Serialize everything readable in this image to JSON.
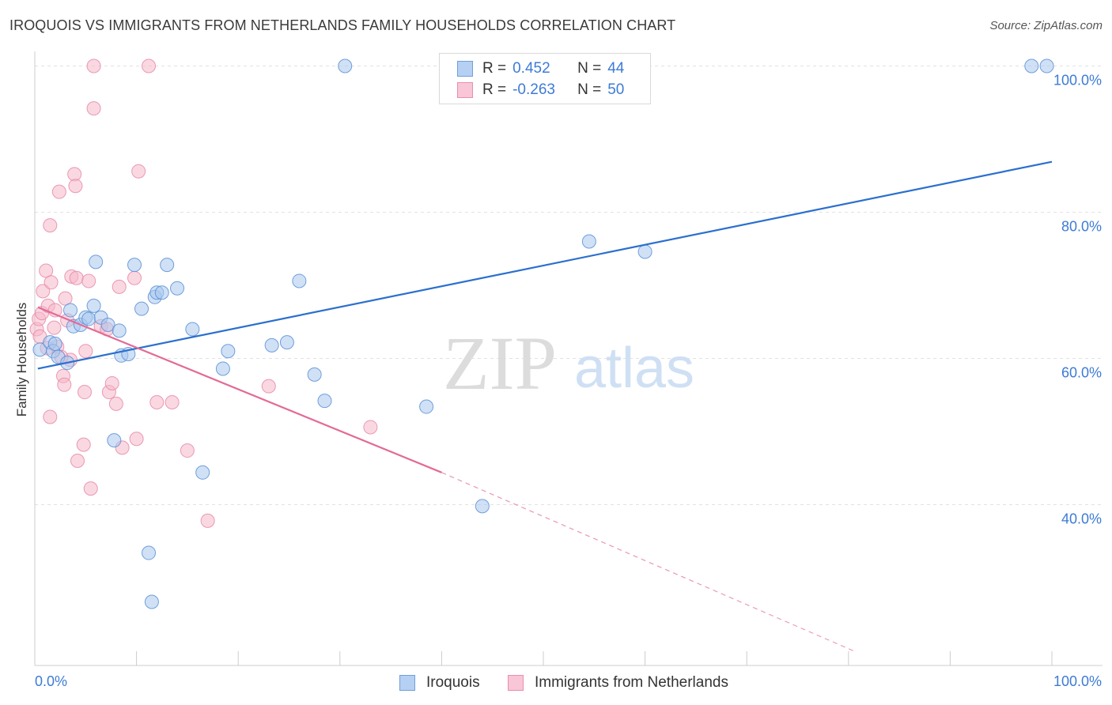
{
  "header": {
    "title": "IROQUOIS VS IMMIGRANTS FROM NETHERLANDS FAMILY HOUSEHOLDS CORRELATION CHART",
    "source": "Source: ZipAtlas.com"
  },
  "watermark": {
    "zip": "ZIP",
    "atlas": "atlas"
  },
  "stats": {
    "rows": [
      {
        "r_label": "R =",
        "r_value": "0.452",
        "n_label": "N =",
        "n_value": "44"
      },
      {
        "r_label": "R =",
        "r_value": "-0.263",
        "n_label": "N =",
        "n_value": "50"
      }
    ]
  },
  "legend": {
    "items": [
      {
        "label": "Iroquois"
      },
      {
        "label": "Immigrants from Netherlands"
      }
    ]
  },
  "colors": {
    "blue_fill": "#a9c8ef",
    "blue_stroke": "#5b8fd6",
    "blue_line": "#2b6fce",
    "pink_fill": "#f6b8cb",
    "pink_stroke": "#e88aa8",
    "pink_line": "#e36a96",
    "accent_text": "#3d7bd6",
    "grid": "#e2e2e2"
  },
  "chart_data": {
    "type": "scatter",
    "title": "IROQUOIS VS IMMIGRANTS FROM NETHERLANDS FAMILY HOUSEHOLDS CORRELATION CHART",
    "xlabel": "",
    "ylabel": "Family Households",
    "xlim": [
      0,
      100
    ],
    "ylim": [
      18,
      102
    ],
    "x_tick_labels": [
      "0.0%",
      "100.0%"
    ],
    "y_ticks": [
      40,
      60,
      80,
      100
    ],
    "y_tick_labels": [
      "40.0%",
      "60.0%",
      "80.0%",
      "100.0%"
    ],
    "grid": true,
    "series": [
      {
        "name": "Iroquois",
        "color": "blue",
        "points": [
          [
            0.5,
            61.2
          ],
          [
            1.5,
            62.2
          ],
          [
            1.8,
            61.0
          ],
          [
            2.3,
            60.2
          ],
          [
            3.2,
            59.4
          ],
          [
            3.5,
            66.6
          ],
          [
            3.8,
            64.4
          ],
          [
            4.5,
            64.6
          ],
          [
            5.0,
            65.6
          ],
          [
            5.3,
            65.4
          ],
          [
            5.8,
            67.2
          ],
          [
            6.0,
            73.2
          ],
          [
            6.5,
            65.6
          ],
          [
            7.2,
            64.6
          ],
          [
            7.8,
            48.8
          ],
          [
            8.3,
            63.8
          ],
          [
            8.5,
            60.4
          ],
          [
            9.2,
            60.6
          ],
          [
            9.8,
            72.8
          ],
          [
            10.5,
            66.8
          ],
          [
            11.2,
            33.4
          ],
          [
            11.8,
            68.4
          ],
          [
            12.0,
            69.0
          ],
          [
            12.5,
            69.0
          ],
          [
            13.0,
            72.8
          ],
          [
            14.0,
            69.6
          ],
          [
            15.5,
            64.0
          ],
          [
            16.5,
            44.4
          ],
          [
            18.5,
            58.6
          ],
          [
            19.0,
            61.0
          ],
          [
            23.3,
            61.8
          ],
          [
            24.8,
            62.2
          ],
          [
            26.0,
            70.6
          ],
          [
            27.5,
            57.8
          ],
          [
            28.5,
            54.2
          ],
          [
            30.5,
            100.0
          ],
          [
            38.5,
            53.4
          ],
          [
            44.0,
            39.8
          ],
          [
            54.5,
            76.0
          ],
          [
            60.0,
            74.6
          ],
          [
            98.0,
            100.0
          ],
          [
            99.5,
            100.0
          ],
          [
            2.0,
            62.0
          ],
          [
            11.5,
            26.7
          ]
        ],
        "trend": {
          "x": [
            0.3,
            100
          ],
          "y": [
            58.6,
            86.9
          ]
        }
      },
      {
        "name": "Immigrants from Netherlands",
        "color": "pink",
        "points": [
          [
            0.2,
            64.0
          ],
          [
            0.4,
            65.4
          ],
          [
            0.7,
            66.2
          ],
          [
            0.8,
            69.2
          ],
          [
            1.1,
            72.0
          ],
          [
            1.3,
            67.2
          ],
          [
            1.5,
            52.0
          ],
          [
            1.5,
            78.2
          ],
          [
            1.6,
            70.4
          ],
          [
            2.0,
            66.6
          ],
          [
            2.2,
            61.6
          ],
          [
            2.4,
            82.8
          ],
          [
            2.8,
            57.6
          ],
          [
            2.9,
            56.4
          ],
          [
            3.0,
            68.2
          ],
          [
            3.2,
            65.2
          ],
          [
            3.5,
            59.8
          ],
          [
            3.6,
            71.2
          ],
          [
            3.9,
            85.2
          ],
          [
            4.0,
            83.6
          ],
          [
            4.1,
            71.0
          ],
          [
            4.2,
            46.0
          ],
          [
            4.8,
            48.2
          ],
          [
            4.9,
            55.4
          ],
          [
            5.0,
            61.0
          ],
          [
            5.3,
            70.6
          ],
          [
            5.5,
            42.2
          ],
          [
            5.8,
            94.2
          ],
          [
            5.8,
            100.0
          ],
          [
            6.5,
            64.4
          ],
          [
            7.1,
            64.0
          ],
          [
            7.3,
            55.4
          ],
          [
            7.6,
            56.6
          ],
          [
            8.0,
            53.8
          ],
          [
            8.3,
            69.8
          ],
          [
            8.6,
            47.8
          ],
          [
            9.8,
            71.0
          ],
          [
            10.0,
            49.0
          ],
          [
            10.2,
            85.6
          ],
          [
            11.2,
            100.0
          ],
          [
            12.0,
            54.0
          ],
          [
            13.5,
            54.0
          ],
          [
            15.0,
            47.4
          ],
          [
            17.0,
            37.8
          ],
          [
            23.0,
            56.2
          ],
          [
            33.0,
            50.6
          ],
          [
            0.5,
            63.0
          ],
          [
            1.2,
            61.4
          ],
          [
            1.9,
            64.2
          ],
          [
            2.6,
            60.2
          ]
        ],
        "trend_solid": {
          "x": [
            0.3,
            40.0
          ],
          "y": [
            67.0,
            44.4
          ]
        },
        "trend_dashed": {
          "x": [
            40.0,
            80.5
          ],
          "y": [
            44.4,
            20.0
          ]
        }
      }
    ]
  }
}
